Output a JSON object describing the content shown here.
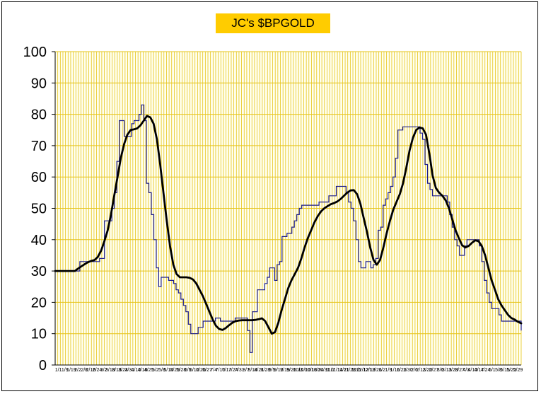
{
  "chart_data": {
    "type": "line",
    "title": "JC's $BPGOLD",
    "xlabel": "",
    "ylabel": "",
    "ylim": [
      0,
      100
    ],
    "yticks": [
      0,
      10,
      20,
      30,
      40,
      50,
      60,
      70,
      80,
      90,
      100
    ],
    "xtick_labels": [
      "1/1",
      "1/9",
      "1/19",
      "2/2",
      "2/8",
      "2/16",
      "2/24",
      "3/2",
      "3/10",
      "3/18",
      "3/24",
      "3/31",
      "4/10",
      "4/18",
      "4/25",
      "5/2",
      "5/8",
      "5/14",
      "5/20",
      "5/28",
      "6/5",
      "6/12",
      "6/20",
      "6/27",
      "7/4",
      "7/10",
      "7/17",
      "7/24",
      "7/31",
      "8/7",
      "8/14",
      "8/21",
      "8/28",
      "9/5",
      "9/12",
      "9/19",
      "9/26",
      "10/3",
      "10/10",
      "10/18",
      "10/24",
      "10/31",
      "11/7",
      "11/14",
      "11/21",
      "11/28",
      "12/5",
      "12/12",
      "12/19",
      "12/26",
      "1/2",
      "1/9",
      "1/16",
      "1/23",
      "1/30",
      "2/6",
      "2/13",
      "2/20",
      "2/27",
      "3/6",
      "3/13",
      "3/20",
      "3/27",
      "4/3",
      "4/10",
      "4/17",
      "4/24",
      "5/1",
      "5/8",
      "5/15",
      "5/22",
      "5/29"
    ],
    "grid": true,
    "legend": "none",
    "colors": {
      "plot_bg": "#ffffee",
      "grid": "#e6c419",
      "raw": "#1c1c8c",
      "smooth": "#000000",
      "title_bg": "#ffcc00"
    },
    "series": [
      {
        "style": "thin-step",
        "values": [
          30,
          30,
          30,
          30,
          30,
          30,
          30,
          30,
          30,
          30,
          33,
          33,
          33,
          33,
          33,
          33,
          33,
          33,
          34,
          34,
          46,
          46,
          46,
          50,
          55,
          65,
          78,
          78,
          73,
          73,
          73,
          77,
          78,
          78,
          80,
          83,
          78,
          58,
          55,
          48,
          40,
          31,
          25,
          28,
          28,
          28,
          27,
          27,
          26,
          24,
          23,
          21,
          19,
          17,
          13,
          10,
          10,
          10,
          12,
          12,
          14,
          14,
          14,
          14,
          14,
          15,
          15,
          14,
          14,
          14,
          14,
          14,
          14,
          15,
          15,
          15,
          15,
          15,
          11,
          4,
          17,
          17,
          24,
          24,
          24,
          26,
          28,
          31,
          31,
          27,
          32,
          33,
          41,
          41,
          42,
          42,
          44,
          46,
          48,
          50,
          51,
          51,
          51,
          51,
          51,
          51,
          51,
          52,
          52,
          52,
          52,
          54,
          54,
          54,
          57,
          57,
          57,
          57,
          55,
          52,
          50,
          46,
          40,
          33,
          31,
          31,
          33,
          33,
          31,
          32,
          34,
          43,
          44,
          51,
          53,
          55,
          57,
          60,
          66,
          75,
          75,
          76,
          76,
          76,
          76,
          76,
          76,
          76,
          74,
          72,
          64,
          58,
          56,
          54,
          54,
          54,
          54,
          54,
          54,
          52,
          48,
          44,
          40,
          38,
          35,
          35,
          38,
          40,
          40,
          40,
          40,
          40,
          38,
          33,
          27,
          23,
          20,
          18,
          18,
          18,
          16,
          14,
          14,
          14,
          14,
          14,
          14,
          14,
          14,
          11
        ]
      },
      {
        "style": "thick-smooth",
        "values": [
          30,
          30,
          30,
          30,
          30,
          30,
          30,
          30.8,
          31.5,
          32.2,
          32.8,
          33.2,
          33.5,
          34.5,
          36.5,
          39.5,
          43,
          48,
          54,
          60,
          66,
          70.5,
          73.5,
          75,
          75.2,
          75.5,
          76.5,
          78,
          79.5,
          79,
          77,
          72,
          64,
          55,
          46,
          38,
          32,
          29,
          28,
          28,
          28,
          27.8,
          27.3,
          26,
          24,
          22,
          19.5,
          17,
          14.5,
          12.5,
          11.5,
          11.2,
          11.8,
          12.7,
          13.5,
          14,
          14.2,
          14.3,
          14.3,
          14.3,
          14.3,
          14.4,
          14.6,
          14.9,
          14,
          12,
          10,
          10.5,
          13.5,
          17.5,
          21,
          24.5,
          27,
          29,
          31,
          34,
          37.5,
          40.5,
          43,
          45.5,
          47.5,
          49,
          50,
          50.7,
          51.3,
          51.7,
          52.2,
          53,
          54,
          55,
          55.7,
          55.8,
          54.5,
          51.5,
          47,
          42.5,
          37.5,
          33.5,
          32,
          33.5,
          37.5,
          42,
          46,
          49.5,
          52,
          54.5,
          58,
          63,
          68.5,
          72.5,
          75,
          75.8,
          75.5,
          73.5,
          67.5,
          60.5,
          56.5,
          55,
          54,
          52.5,
          50,
          46.5,
          43,
          40.5,
          38.2,
          37.5,
          38,
          39,
          39.8,
          39.5,
          38,
          35,
          31,
          27,
          24,
          21,
          19,
          17.5,
          16,
          15,
          14.5,
          13.8,
          13.3
        ]
      }
    ]
  }
}
